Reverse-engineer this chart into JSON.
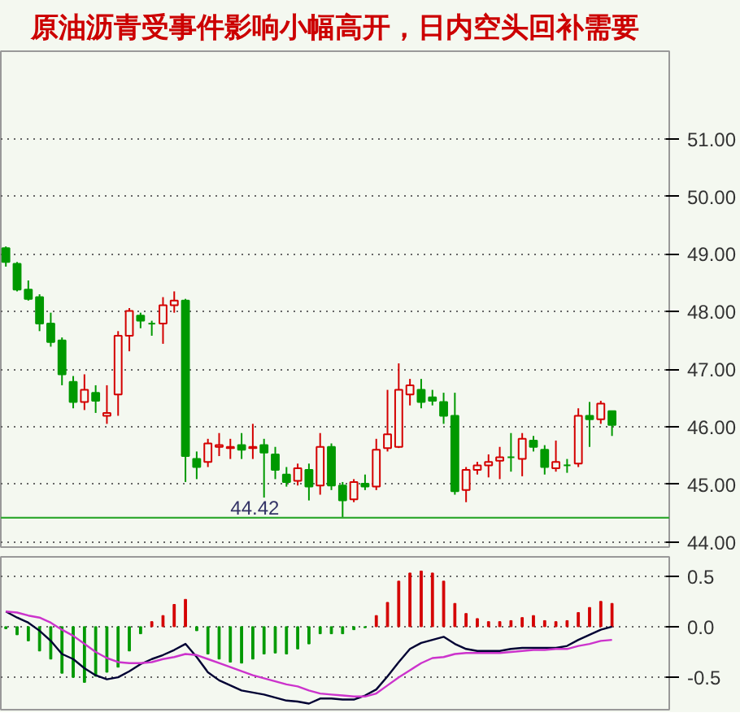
{
  "chart_data": [
    {
      "type": "candlestick",
      "title": "原油沥青受事件影响小幅高开，日内空头回补需要",
      "categories": [
        null,
        null,
        null,
        null,
        null,
        null,
        null,
        null,
        null,
        null,
        null,
        null,
        null,
        null,
        null,
        null,
        null,
        null,
        null,
        null,
        null,
        null,
        null,
        null,
        null,
        null,
        null,
        null,
        null,
        null,
        null,
        null,
        null,
        null,
        null,
        null,
        null,
        null,
        null,
        null,
        null,
        null,
        null,
        null,
        null,
        null,
        null,
        null,
        null,
        null,
        null,
        null,
        null,
        null,
        null
      ],
      "ohlc": [
        [
          49.1,
          49.13,
          48.78,
          48.86
        ],
        [
          48.83,
          48.86,
          48.35,
          48.38
        ],
        [
          48.38,
          48.54,
          48.19,
          48.22
        ],
        [
          48.25,
          48.3,
          47.66,
          47.79
        ],
        [
          47.79,
          47.98,
          47.39,
          47.47
        ],
        [
          47.5,
          47.55,
          46.72,
          46.91
        ],
        [
          46.78,
          46.88,
          46.32,
          46.43
        ],
        [
          46.43,
          46.91,
          46.29,
          46.64
        ],
        [
          46.59,
          46.72,
          46.24,
          46.45
        ],
        [
          46.19,
          46.72,
          46.05,
          46.24
        ],
        [
          46.56,
          47.66,
          46.19,
          47.58
        ],
        [
          47.58,
          48.06,
          47.31,
          48.01
        ],
        [
          47.93,
          47.98,
          47.71,
          47.84
        ],
        [
          47.79,
          47.84,
          47.58,
          47.79
        ],
        [
          47.79,
          48.25,
          47.44,
          48.11
        ],
        [
          48.11,
          48.35,
          47.98,
          48.19
        ],
        [
          48.19,
          48.22,
          45.04,
          45.49
        ],
        [
          45.44,
          45.57,
          45.09,
          45.3
        ],
        [
          45.39,
          45.79,
          45.3,
          45.71
        ],
        [
          45.65,
          45.89,
          45.49,
          45.68
        ],
        [
          45.63,
          45.79,
          45.44,
          45.65
        ],
        [
          45.68,
          45.89,
          45.44,
          45.6
        ],
        [
          45.63,
          46.05,
          45.44,
          45.65
        ],
        [
          45.68,
          45.79,
          44.77,
          45.55
        ],
        [
          45.52,
          45.65,
          45.09,
          45.25
        ],
        [
          45.17,
          45.3,
          44.96,
          45.04
        ],
        [
          45.06,
          45.36,
          44.98,
          45.28
        ],
        [
          45.25,
          45.36,
          44.72,
          44.96
        ],
        [
          44.98,
          45.89,
          44.82,
          45.65
        ],
        [
          45.65,
          45.71,
          44.9,
          44.98
        ],
        [
          44.98,
          45.04,
          44.42,
          44.72
        ],
        [
          44.74,
          45.09,
          44.69,
          45.04
        ],
        [
          45.01,
          45.17,
          44.9,
          44.96
        ],
        [
          44.96,
          45.79,
          44.9,
          45.6
        ],
        [
          45.63,
          46.64,
          45.57,
          45.87
        ],
        [
          45.65,
          47.1,
          45.63,
          46.64
        ],
        [
          46.56,
          46.83,
          46.37,
          46.72
        ],
        [
          46.64,
          46.83,
          46.32,
          46.43
        ],
        [
          46.51,
          46.64,
          46.37,
          46.45
        ],
        [
          46.43,
          46.59,
          46.05,
          46.19
        ],
        [
          46.19,
          46.59,
          44.82,
          44.88
        ],
        [
          44.9,
          45.3,
          44.69,
          45.25
        ],
        [
          45.25,
          45.39,
          45.17,
          45.33
        ],
        [
          45.33,
          45.52,
          45.12,
          45.39
        ],
        [
          45.41,
          45.65,
          45.09,
          45.47
        ],
        [
          45.47,
          45.89,
          45.22,
          45.47
        ],
        [
          45.44,
          45.89,
          45.14,
          45.79
        ],
        [
          45.76,
          45.84,
          45.57,
          45.65
        ],
        [
          45.6,
          45.68,
          45.17,
          45.3
        ],
        [
          45.28,
          45.76,
          45.22,
          45.39
        ],
        [
          45.33,
          45.44,
          45.2,
          45.33
        ],
        [
          45.36,
          46.32,
          45.3,
          46.19
        ],
        [
          46.19,
          46.43,
          45.65,
          46.13
        ],
        [
          46.13,
          46.45,
          46.05,
          46.4
        ],
        [
          46.27,
          46.27,
          45.84,
          46.03
        ]
      ],
      "colors": [
        "#009900",
        "#009900",
        "#009900",
        "#009900",
        "#009900",
        "#009900",
        "#009900",
        "#d40000",
        "#009900",
        "#d40000",
        "#d40000",
        "#d40000",
        "#009900",
        "#009900",
        "#d40000",
        "#d40000",
        "#009900",
        "#009900",
        "#d40000",
        "#d40000",
        "#d40000",
        "#009900",
        "#d40000",
        "#009900",
        "#009900",
        "#009900",
        "#d40000",
        "#009900",
        "#d40000",
        "#009900",
        "#009900",
        "#d40000",
        "#009900",
        "#d40000",
        "#d40000",
        "#d40000",
        "#d40000",
        "#009900",
        "#009900",
        "#009900",
        "#009900",
        "#d40000",
        "#d40000",
        "#d40000",
        "#d40000",
        "#009900",
        "#d40000",
        "#009900",
        "#009900",
        "#d40000",
        "#009900",
        "#d40000",
        "#009900",
        "#d40000",
        "#009900"
      ],
      "ylim": [
        43.91,
        52.52
      ],
      "yticks": [
        {
          "value": 44,
          "label": "44.00"
        },
        {
          "value": 45,
          "label": "45.00"
        },
        {
          "value": 46,
          "label": "46.00"
        },
        {
          "value": 47,
          "label": "47.00"
        },
        {
          "value": 48,
          "label": "48.00"
        },
        {
          "value": 49,
          "label": "49.00"
        },
        {
          "value": 50,
          "label": "50.00"
        },
        {
          "value": 51,
          "label": "51.00"
        }
      ],
      "ref_lines": [
        {
          "axis": "y",
          "value": 44.42,
          "label": "44.42",
          "color": "#33aa33"
        }
      ],
      "grid": "y",
      "tick_labels": "y"
    },
    {
      "type": "bar",
      "categories": [
        null,
        null,
        null,
        null,
        null,
        null,
        null,
        null,
        null,
        null,
        null,
        null,
        null,
        null,
        null,
        null,
        null,
        null,
        null,
        null,
        null,
        null,
        null,
        null,
        null,
        null,
        null,
        null,
        null,
        null,
        null,
        null,
        null,
        null,
        null,
        null,
        null,
        null,
        null,
        null,
        null,
        null,
        null,
        null,
        null,
        null,
        null,
        null,
        null,
        null,
        null,
        null,
        null,
        null,
        null
      ],
      "series": [
        {
          "type": "bar",
          "values": [
            -0.02,
            -0.08,
            -0.14,
            -0.24,
            -0.32,
            -0.46,
            -0.5,
            -0.55,
            -0.49,
            -0.45,
            -0.4,
            -0.24,
            -0.07,
            0.05,
            0.11,
            0.22,
            0.27,
            -0.04,
            -0.27,
            -0.32,
            -0.35,
            -0.36,
            -0.32,
            -0.27,
            -0.26,
            -0.27,
            -0.22,
            -0.17,
            -0.07,
            -0.07,
            -0.07,
            -0.03,
            -0.01,
            0.11,
            0.24,
            0.45,
            0.53,
            0.55,
            0.53,
            0.45,
            0.23,
            0.13,
            0.08,
            0.05,
            0.05,
            0.06,
            0.09,
            0.11,
            0.06,
            0.05,
            0.06,
            0.14,
            0.19,
            0.25,
            0.23
          ],
          "colors": [
            "#009900",
            "#009900",
            "#009900",
            "#009900",
            "#009900",
            "#009900",
            "#009900",
            "#009900",
            "#009900",
            "#009900",
            "#009900",
            "#009900",
            "#009900",
            "#d40000",
            "#d40000",
            "#d40000",
            "#d40000",
            "#009900",
            "#009900",
            "#009900",
            "#009900",
            "#009900",
            "#009900",
            "#009900",
            "#009900",
            "#009900",
            "#009900",
            "#009900",
            "#009900",
            "#009900",
            "#009900",
            "#009900",
            "#009900",
            "#d40000",
            "#d40000",
            "#d40000",
            "#d40000",
            "#d40000",
            "#d40000",
            "#d40000",
            "#d40000",
            "#d40000",
            "#d40000",
            "#d40000",
            "#d40000",
            "#d40000",
            "#d40000",
            "#d40000",
            "#d40000",
            "#d40000",
            "#d40000",
            "#d40000",
            "#d40000",
            "#d40000",
            "#d40000"
          ]
        },
        {
          "type": "line",
          "color": "#000033",
          "values": [
            0.15,
            0.09,
            0.04,
            -0.04,
            -0.14,
            -0.27,
            -0.32,
            -0.41,
            -0.48,
            -0.52,
            -0.5,
            -0.44,
            -0.37,
            -0.32,
            -0.28,
            -0.23,
            -0.17,
            -0.3,
            -0.45,
            -0.53,
            -0.58,
            -0.63,
            -0.65,
            -0.67,
            -0.7,
            -0.73,
            -0.74,
            -0.76,
            -0.71,
            -0.71,
            -0.72,
            -0.72,
            -0.68,
            -0.62,
            -0.49,
            -0.35,
            -0.22,
            -0.16,
            -0.13,
            -0.1,
            -0.17,
            -0.22,
            -0.24,
            -0.24,
            -0.24,
            -0.22,
            -0.21,
            -0.21,
            -0.21,
            -0.21,
            -0.19,
            -0.13,
            -0.08,
            -0.03,
            0.0
          ]
        },
        {
          "type": "line",
          "color": "#cc33cc",
          "values": [
            0.15,
            0.14,
            0.11,
            0.09,
            0.04,
            -0.03,
            -0.09,
            -0.17,
            -0.25,
            -0.31,
            -0.35,
            -0.36,
            -0.36,
            -0.35,
            -0.32,
            -0.3,
            -0.27,
            -0.28,
            -0.32,
            -0.36,
            -0.4,
            -0.44,
            -0.48,
            -0.51,
            -0.54,
            -0.57,
            -0.59,
            -0.63,
            -0.66,
            -0.67,
            -0.68,
            -0.69,
            -0.69,
            -0.66,
            -0.58,
            -0.5,
            -0.43,
            -0.36,
            -0.31,
            -0.3,
            -0.27,
            -0.26,
            -0.26,
            -0.26,
            -0.26,
            -0.25,
            -0.24,
            -0.23,
            -0.23,
            -0.22,
            -0.22,
            -0.19,
            -0.17,
            -0.14,
            -0.13
          ]
        }
      ],
      "ylim": [
        -0.82,
        0.69
      ],
      "yticks": [
        0.5,
        {
          "value": 0,
          "label": "0.0"
        },
        -0.5
      ],
      "grid": "y",
      "tick_labels": "y"
    }
  ]
}
